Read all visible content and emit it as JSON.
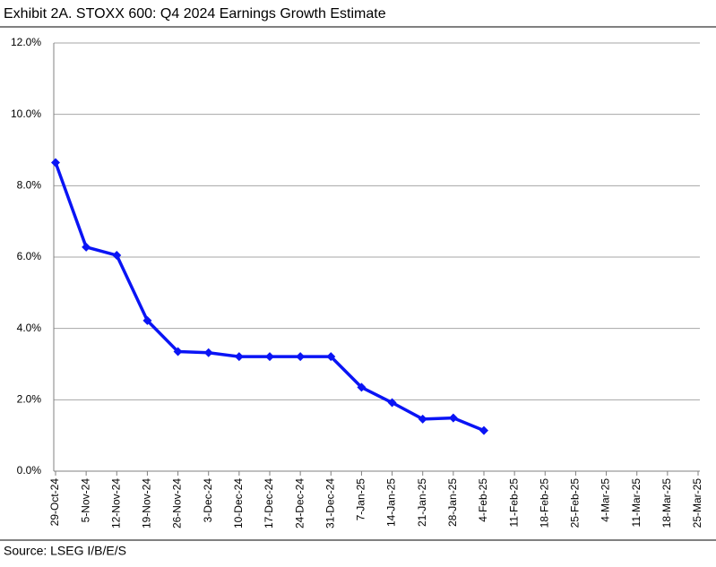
{
  "chart_data": {
    "type": "line",
    "title": "Exhibit 2A.  STOXX 600: Q4 2024 Earnings Growth Estimate",
    "source": "Source: LSEG I/B/E/S",
    "categories": [
      "29-Oct-24",
      "5-Nov-24",
      "12-Nov-24",
      "19-Nov-24",
      "26-Nov-24",
      "3-Dec-24",
      "10-Dec-24",
      "17-Dec-24",
      "24-Dec-24",
      "31-Dec-24",
      "7-Jan-25",
      "14-Jan-25",
      "21-Jan-25",
      "28-Jan-25",
      "4-Feb-25",
      "11-Feb-25",
      "18-Feb-25",
      "25-Feb-25",
      "4-Mar-25",
      "11-Mar-25",
      "18-Mar-25",
      "25-Mar-25"
    ],
    "values": [
      8.65,
      6.28,
      6.05,
      4.22,
      3.35,
      3.32,
      3.21,
      3.21,
      3.21,
      3.21,
      2.35,
      1.92,
      1.46,
      1.49,
      1.14,
      null,
      null,
      null,
      null,
      null,
      null,
      null
    ],
    "color": "#0a14f5",
    "ylim": [
      0,
      12
    ],
    "yticks": [
      {
        "value": 0,
        "label": "0.0%"
      },
      {
        "value": 2,
        "label": "2.0%"
      },
      {
        "value": 4,
        "label": "4.0%"
      },
      {
        "value": 6,
        "label": "6.0%"
      },
      {
        "value": 8,
        "label": "8.0%"
      },
      {
        "value": 10,
        "label": "10.0%"
      },
      {
        "value": 12,
        "label": "12.0%"
      }
    ],
    "grid": true
  }
}
